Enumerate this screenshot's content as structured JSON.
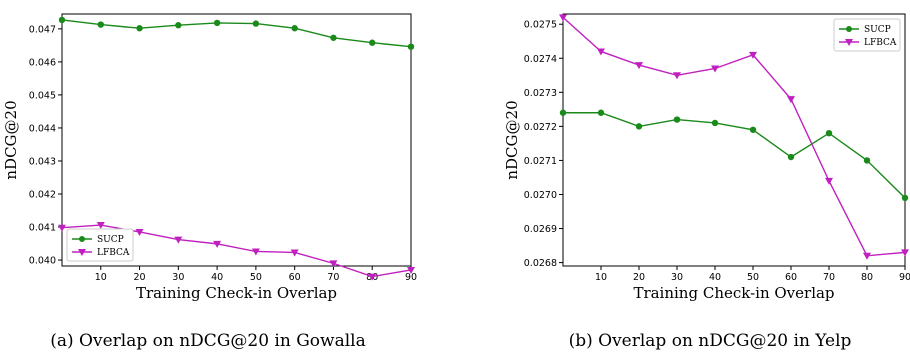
{
  "chart_data": [
    {
      "type": "line",
      "caption": "(a) Overlap on nDCG@20 in Gowalla",
      "xlabel": "Training Check-in Overlap",
      "ylabel": "nDCG@20",
      "xlim": [
        0,
        90
      ],
      "ylim": [
        0.03982,
        0.04745
      ],
      "xticks": [
        10,
        20,
        30,
        40,
        50,
        60,
        70,
        80,
        90
      ],
      "yticks": [
        0.04,
        0.041,
        0.042,
        0.043,
        0.044,
        0.045,
        0.046,
        0.047
      ],
      "ytick_labels": [
        "0.040",
        "0.041",
        "0.042",
        "0.043",
        "0.044",
        "0.045",
        "0.046",
        "0.047"
      ],
      "legend_position": "lower-left",
      "x": [
        0,
        10,
        20,
        30,
        40,
        50,
        60,
        70,
        80,
        90
      ],
      "series": [
        {
          "name": "SUCP",
          "color": "#1a8a1a",
          "marker": "circle",
          "values": [
            0.04727,
            0.04713,
            0.04702,
            0.04711,
            0.04718,
            0.04716,
            0.04702,
            0.04673,
            0.04658,
            0.04646
          ]
        },
        {
          "name": "LFBCA",
          "color": "#c020c0",
          "marker": "triangle-down",
          "values": [
            0.04098,
            0.04106,
            0.04085,
            0.04062,
            0.04049,
            0.04026,
            0.04023,
            0.0399,
            0.0395,
            0.0397
          ]
        }
      ]
    },
    {
      "type": "line",
      "caption": "(b) Overlap on nDCG@20 in Yelp",
      "xlabel": "Training Check-in Overlap",
      "ylabel": "nDCG@20",
      "xlim": [
        0,
        90
      ],
      "ylim": [
        0.02679,
        0.02753
      ],
      "xticks": [
        10,
        20,
        30,
        40,
        50,
        60,
        70,
        80,
        90
      ],
      "yticks": [
        0.0268,
        0.0269,
        0.027,
        0.0271,
        0.0272,
        0.0273,
        0.0274,
        0.0275
      ],
      "ytick_labels": [
        "0.0268",
        "0.0269",
        "0.0270",
        "0.0271",
        "0.0272",
        "0.0273",
        "0.0274",
        "0.0275"
      ],
      "legend_position": "top-right",
      "x": [
        0,
        10,
        20,
        30,
        40,
        50,
        60,
        70,
        80,
        90
      ],
      "series": [
        {
          "name": "SUCP",
          "color": "#1a8a1a",
          "marker": "circle",
          "values": [
            0.02724,
            0.02724,
            0.0272,
            0.02722,
            0.02721,
            0.02719,
            0.02711,
            0.02718,
            0.0271,
            0.02699
          ]
        },
        {
          "name": "LFBCA",
          "color": "#c020c0",
          "marker": "triangle-down",
          "values": [
            0.02752,
            0.02742,
            0.02738,
            0.02735,
            0.02737,
            0.02741,
            0.02728,
            0.02704,
            0.02682,
            0.02683
          ]
        }
      ]
    }
  ]
}
